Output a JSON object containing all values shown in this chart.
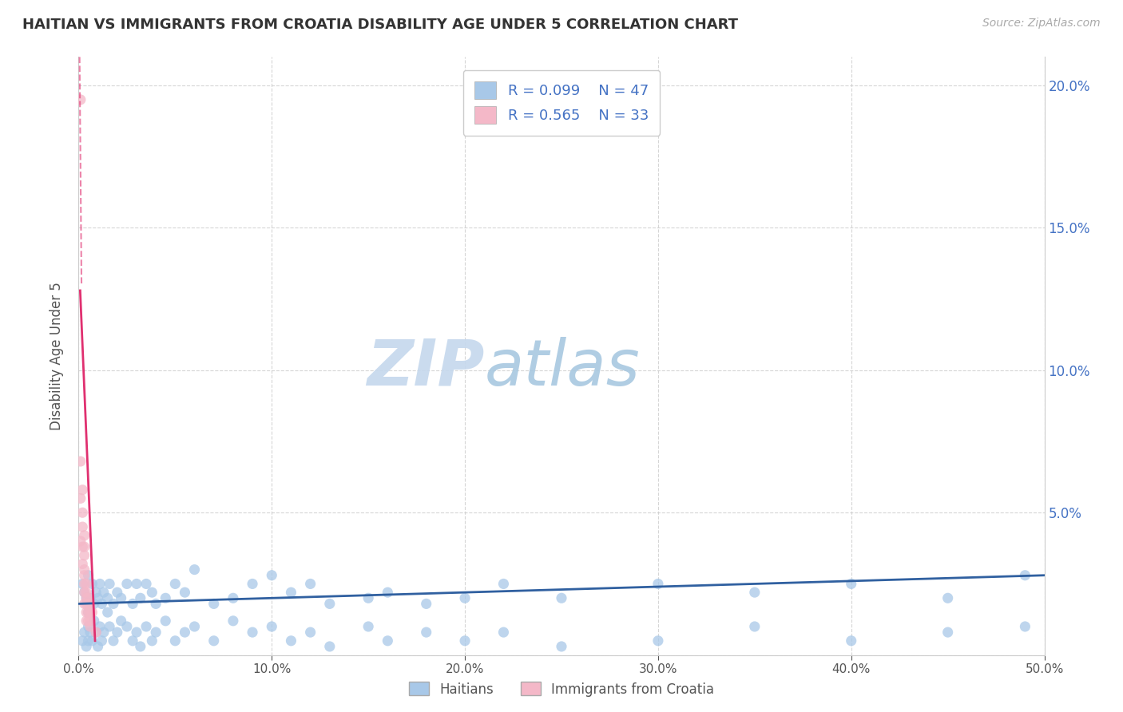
{
  "title": "HAITIAN VS IMMIGRANTS FROM CROATIA DISABILITY AGE UNDER 5 CORRELATION CHART",
  "source": "Source: ZipAtlas.com",
  "ylabel": "Disability Age Under 5",
  "xlim": [
    0,
    0.5
  ],
  "ylim": [
    0,
    0.21
  ],
  "xtick_labels": [
    "0.0%",
    "10.0%",
    "20.0%",
    "30.0%",
    "40.0%",
    "50.0%"
  ],
  "xtick_values": [
    0.0,
    0.1,
    0.2,
    0.3,
    0.4,
    0.5
  ],
  "ytick_values": [
    0.0,
    0.05,
    0.1,
    0.15,
    0.2
  ],
  "right_ytick_labels": [
    "",
    "5.0%",
    "10.0%",
    "15.0%",
    "20.0%"
  ],
  "watermark_zip": "ZIP",
  "watermark_atlas": "atlas",
  "legend_r1": "R = 0.099",
  "legend_n1": "N = 47",
  "legend_r2": "R = 0.565",
  "legend_n2": "N = 33",
  "color_blue": "#a8c8e8",
  "color_pink": "#f4b8c8",
  "trendline_blue": "#3060a0",
  "trendline_pink": "#e03070",
  "background": "#ffffff",
  "grid_color": "#cccccc",
  "haiti_x": [
    0.002,
    0.003,
    0.004,
    0.005,
    0.005,
    0.006,
    0.007,
    0.008,
    0.009,
    0.01,
    0.011,
    0.012,
    0.013,
    0.015,
    0.016,
    0.018,
    0.02,
    0.022,
    0.025,
    0.028,
    0.03,
    0.032,
    0.035,
    0.038,
    0.04,
    0.045,
    0.05,
    0.055,
    0.06,
    0.07,
    0.08,
    0.09,
    0.1,
    0.11,
    0.12,
    0.13,
    0.15,
    0.16,
    0.18,
    0.2,
    0.22,
    0.25,
    0.3,
    0.35,
    0.4,
    0.45,
    0.49
  ],
  "haiti_y": [
    0.025,
    0.022,
    0.02,
    0.028,
    0.015,
    0.02,
    0.025,
    0.018,
    0.022,
    0.02,
    0.025,
    0.018,
    0.022,
    0.02,
    0.025,
    0.018,
    0.022,
    0.02,
    0.025,
    0.018,
    0.025,
    0.02,
    0.025,
    0.022,
    0.018,
    0.02,
    0.025,
    0.022,
    0.03,
    0.018,
    0.02,
    0.025,
    0.028,
    0.022,
    0.025,
    0.018,
    0.02,
    0.022,
    0.018,
    0.02,
    0.025,
    0.02,
    0.025,
    0.022,
    0.025,
    0.02,
    0.028
  ],
  "haiti_y_low": [
    0.005,
    0.008,
    0.003,
    0.01,
    0.005,
    0.008,
    0.005,
    0.012,
    0.008,
    0.003,
    0.01,
    0.005,
    0.008,
    0.015,
    0.01,
    0.005,
    0.008,
    0.012,
    0.01,
    0.005,
    0.008,
    0.003,
    0.01,
    0.005,
    0.008,
    0.012,
    0.005,
    0.008,
    0.01,
    0.005,
    0.012,
    0.008,
    0.01,
    0.005,
    0.008,
    0.003,
    0.01,
    0.005,
    0.008,
    0.005,
    0.008,
    0.003,
    0.005,
    0.01,
    0.005,
    0.008,
    0.01
  ],
  "croatia_x": [
    0.001,
    0.001,
    0.001,
    0.001,
    0.002,
    0.002,
    0.002,
    0.002,
    0.002,
    0.003,
    0.003,
    0.003,
    0.003,
    0.003,
    0.003,
    0.003,
    0.003,
    0.004,
    0.004,
    0.004,
    0.004,
    0.004,
    0.004,
    0.005,
    0.005,
    0.005,
    0.005,
    0.006,
    0.006,
    0.006,
    0.006,
    0.007,
    0.009
  ],
  "croatia_y": [
    0.195,
    0.068,
    0.055,
    0.04,
    0.058,
    0.05,
    0.045,
    0.038,
    0.032,
    0.042,
    0.038,
    0.035,
    0.03,
    0.028,
    0.025,
    0.022,
    0.018,
    0.025,
    0.022,
    0.02,
    0.018,
    0.015,
    0.012,
    0.02,
    0.018,
    0.015,
    0.012,
    0.018,
    0.015,
    0.012,
    0.01,
    0.015,
    0.008
  ]
}
